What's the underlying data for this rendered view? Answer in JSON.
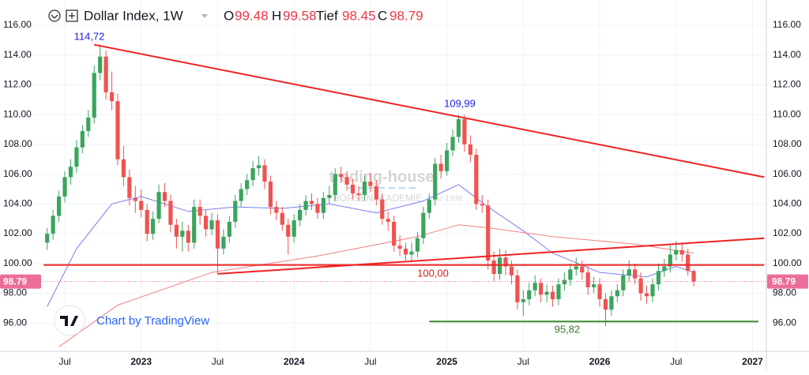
{
  "chart_data": {
    "type": "candlestick",
    "header": {
      "title": "Dollar Index, 1W",
      "open_label": "O",
      "open": 99.48,
      "high_label": "H",
      "high": 99.58,
      "low_label": "Tief",
      "low": 98.45,
      "close_label": "C",
      "close": 98.79
    },
    "credit": "Chart by TradingView",
    "watermark": {
      "name": "trading-house",
      "subtitle": "BÖRSENAKADEMIE",
      "since": "est 1998"
    },
    "up_color": "#3aa55d",
    "down_color": "#ef5350",
    "grid": true,
    "ylim": [
      94.1,
      117.7
    ],
    "yticks": [
      {
        "value": 96,
        "label": "96.00"
      },
      {
        "value": 98,
        "label": "98.00"
      },
      {
        "value": 100,
        "label": "100.00"
      },
      {
        "value": 102,
        "label": "102.00"
      },
      {
        "value": 104,
        "label": "104.00"
      },
      {
        "value": 106,
        "label": "106.00"
      },
      {
        "value": 108,
        "label": "108.00"
      },
      {
        "value": 110,
        "label": "110.00"
      },
      {
        "value": 112,
        "label": "112.00"
      },
      {
        "value": 114,
        "label": "114.00"
      },
      {
        "value": 116,
        "label": "116.00"
      }
    ],
    "last_price": {
      "value": 98.79,
      "label": "98.79",
      "color": "#ec6d9a"
    },
    "categories": [
      null,
      null,
      null,
      "Jul",
      null,
      null,
      null,
      null,
      null,
      null,
      null,
      null,
      null,
      null,
      null,
      null,
      "2023",
      null,
      null,
      null,
      null,
      null,
      null,
      null,
      null,
      null,
      null,
      null,
      null,
      "Jul",
      null,
      null,
      null,
      null,
      null,
      null,
      null,
      null,
      null,
      null,
      null,
      null,
      "2024",
      null,
      null,
      null,
      null,
      null,
      null,
      null,
      null,
      null,
      null,
      null,
      null,
      "Jul",
      null,
      null,
      null,
      null,
      null,
      null,
      null,
      null,
      null,
      null,
      null,
      null,
      "2025",
      null,
      null,
      null,
      null,
      null,
      null,
      null,
      null,
      null,
      null,
      null,
      null,
      "Jul",
      null,
      null,
      null,
      null,
      null,
      null,
      null,
      null,
      null,
      null,
      null,
      null,
      "2026",
      null,
      null,
      null,
      null,
      null,
      null,
      null,
      null,
      null,
      null,
      null,
      null,
      "Jul",
      null,
      null,
      null,
      null,
      null,
      null,
      null,
      null,
      null,
      null,
      null,
      null,
      "2027",
      null
    ],
    "open": [
      101.4,
      102.0,
      103.2,
      104.5,
      105.8,
      106.5,
      107.8,
      108.9,
      109.8,
      112.8,
      113.9,
      111.5,
      110.9,
      107.0,
      105.8,
      104.4,
      104.2,
      103.6,
      102.0,
      103.0,
      104.8,
      104.2,
      102.6,
      101.8,
      102.2,
      101.4,
      103.8,
      103.2,
      102.3,
      102.9,
      101.0,
      101.8,
      102.8,
      104.2,
      105.0,
      105.6,
      106.4,
      106.6,
      105.5,
      103.8,
      103.4,
      102.6,
      101.8,
      102.9,
      103.6,
      104.2,
      104.0,
      103.4,
      104.4,
      104.6,
      106.0,
      105.8,
      105.3,
      104.7,
      104.6,
      105.5,
      105.2,
      104.3,
      103.0,
      102.8,
      101.2,
      101.0,
      100.6,
      100.8,
      101.7,
      103.4,
      104.3,
      106.7,
      106.2,
      107.6,
      108.5,
      109.7,
      108.0,
      107.3,
      104.0,
      103.9,
      100.2,
      99.3,
      100.4,
      99.8,
      99.2,
      97.4,
      97.6,
      98.2,
      98.7,
      97.9,
      98.1,
      97.6,
      98.6,
      98.9,
      99.6,
      99.8,
      99.4,
      98.4,
      98.6,
      97.6,
      96.9,
      97.8,
      98.2,
      99.2,
      99.6,
      99.0,
      98.0,
      97.8,
      98.6,
      99.5,
      99.8,
      100.6,
      100.9,
      100.6,
      99.5,
      null,
      null,
      null,
      null,
      null,
      null,
      null,
      null,
      null,
      null,
      null
    ],
    "high": [
      102.4,
      103.6,
      104.9,
      106.2,
      107.0,
      108.3,
      109.3,
      110.3,
      113.3,
      114.7,
      114.3,
      112.9,
      111.4,
      107.9,
      106.3,
      105.2,
      105.0,
      104.0,
      103.5,
      105.3,
      105.4,
      104.6,
      103.0,
      102.8,
      102.6,
      104.3,
      104.3,
      103.6,
      103.4,
      103.3,
      102.3,
      103.2,
      104.6,
      105.4,
      106.0,
      106.9,
      107.2,
      107.0,
      105.9,
      104.2,
      103.8,
      103.0,
      103.3,
      104.0,
      104.6,
      104.7,
      104.4,
      104.8,
      105.2,
      106.4,
      106.5,
      106.2,
      105.7,
      105.2,
      105.9,
      106.1,
      105.6,
      104.7,
      103.5,
      103.2,
      101.9,
      101.4,
      101.4,
      102.1,
      103.8,
      104.7,
      107.1,
      107.3,
      108.1,
      109.0,
      110.0,
      110.0,
      108.6,
      107.7,
      104.6,
      104.3,
      100.8,
      101.0,
      100.9,
      100.2,
      99.6,
      98.2,
      98.7,
      99.2,
      99.0,
      98.6,
      98.5,
      99.0,
      99.4,
      100.0,
      100.4,
      100.2,
      99.8,
      99.1,
      99.0,
      98.0,
      98.2,
      98.6,
      99.6,
      100.2,
      100.0,
      99.4,
      98.5,
      99.0,
      100.0,
      100.3,
      101.2,
      101.5,
      101.4,
      101.0,
      99.6,
      null,
      null,
      null,
      null,
      null,
      null,
      null,
      null,
      null,
      null,
      null
    ],
    "low": [
      100.9,
      101.6,
      102.8,
      104.1,
      105.3,
      106.1,
      107.4,
      108.5,
      109.4,
      112.3,
      111.0,
      110.3,
      106.6,
      105.2,
      103.9,
      103.4,
      103.1,
      101.5,
      101.6,
      102.7,
      103.8,
      102.1,
      101.0,
      100.8,
      100.8,
      101.0,
      102.6,
      101.8,
      101.9,
      99.3,
      100.6,
      101.4,
      102.4,
      103.8,
      104.6,
      105.2,
      105.9,
      105.0,
      103.3,
      102.9,
      102.2,
      100.6,
      101.4,
      102.5,
      103.2,
      103.6,
      103.0,
      103.0,
      104.0,
      104.2,
      105.4,
      104.9,
      104.3,
      104.2,
      104.2,
      104.8,
      103.9,
      102.6,
      102.2,
      100.8,
      100.5,
      100.2,
      100.2,
      100.4,
      101.3,
      103.0,
      103.9,
      105.7,
      105.9,
      107.2,
      108.1,
      107.5,
      106.8,
      103.6,
      103.4,
      99.6,
      98.8,
      98.9,
      99.2,
      98.6,
      96.9,
      96.5,
      97.2,
      97.8,
      97.4,
      97.4,
      97.1,
      97.2,
      98.2,
      98.5,
      99.2,
      98.9,
      97.9,
      98.0,
      97.1,
      95.8,
      96.5,
      97.4,
      97.8,
      98.8,
      98.6,
      97.5,
      97.3,
      97.4,
      98.2,
      99.1,
      99.4,
      100.2,
      100.1,
      99.2,
      98.45,
      null,
      null,
      null,
      null,
      null,
      null,
      null,
      null,
      null,
      null,
      null
    ],
    "close": [
      102.0,
      103.2,
      104.5,
      105.8,
      106.5,
      107.8,
      108.9,
      109.8,
      112.8,
      113.9,
      111.5,
      110.9,
      107.0,
      105.8,
      104.4,
      104.2,
      103.6,
      102.0,
      103.0,
      104.8,
      104.2,
      102.6,
      101.8,
      102.2,
      101.4,
      103.8,
      103.2,
      102.3,
      102.9,
      101.0,
      101.8,
      102.8,
      104.2,
      105.0,
      105.6,
      106.4,
      106.6,
      105.5,
      103.8,
      103.4,
      102.6,
      101.8,
      102.9,
      103.6,
      104.2,
      104.0,
      103.4,
      104.4,
      104.6,
      106.0,
      105.8,
      105.3,
      104.7,
      104.6,
      105.5,
      105.2,
      104.3,
      103.0,
      102.8,
      101.2,
      101.0,
      100.6,
      100.8,
      101.7,
      103.4,
      104.3,
      106.7,
      106.2,
      107.6,
      108.5,
      109.7,
      108.0,
      107.3,
      104.0,
      103.9,
      100.2,
      99.3,
      100.4,
      99.8,
      99.2,
      97.4,
      97.6,
      98.2,
      98.7,
      97.9,
      98.1,
      97.6,
      98.6,
      98.9,
      99.6,
      99.8,
      99.4,
      98.4,
      98.6,
      97.6,
      96.9,
      97.8,
      98.2,
      99.2,
      99.6,
      99.0,
      98.0,
      97.8,
      98.6,
      99.5,
      99.8,
      100.6,
      100.9,
      100.6,
      99.5,
      98.79,
      null,
      null,
      null,
      null,
      null,
      null,
      null,
      null,
      null,
      null,
      null
    ],
    "indicators": [
      {
        "color": "#7b7bf0",
        "x": [
          0,
          5,
          11,
          16,
          24,
          32,
          40,
          48,
          56,
          64,
          70,
          75,
          81,
          86,
          94,
          102,
          107,
          110
        ],
        "values": [
          97.1,
          101.0,
          104.0,
          104.5,
          103.5,
          103.8,
          103.7,
          104.0,
          103.4,
          104.2,
          105.3,
          103.8,
          102.2,
          100.7,
          99.4,
          99.1,
          99.8,
          99.4
        ]
      },
      {
        "color": "#f08080",
        "x": [
          2,
          12,
          28,
          46,
          63,
          70,
          75,
          86,
          100,
          110
        ],
        "values": [
          94.4,
          97.2,
          99.4,
          100.5,
          101.8,
          102.6,
          102.4,
          101.8,
          101.3,
          100.7
        ]
      }
    ],
    "trendlines": [
      {
        "color": "#ee2222",
        "x": [
          8,
          122
        ],
        "values": [
          114.7,
          105.8
        ]
      },
      {
        "color": "#ee2222",
        "x": [
          29,
          122
        ],
        "values": [
          99.3,
          101.7
        ]
      },
      {
        "color": "#ee2222",
        "x": [
          -0.6,
          122
        ],
        "values": [
          99.9,
          99.9
        ]
      },
      {
        "color": "#3a8a2a",
        "x": [
          65,
          121
        ],
        "values": [
          96.1,
          96.1
        ]
      }
    ],
    "annotations": [
      {
        "text": "114,72",
        "color": "#2020e0"
      },
      {
        "text": "109,99",
        "color": "#2020e0"
      },
      {
        "text": "100,00",
        "color": "#d42020"
      },
      {
        "text": "95,82",
        "color": "#3a7a2a"
      }
    ]
  }
}
